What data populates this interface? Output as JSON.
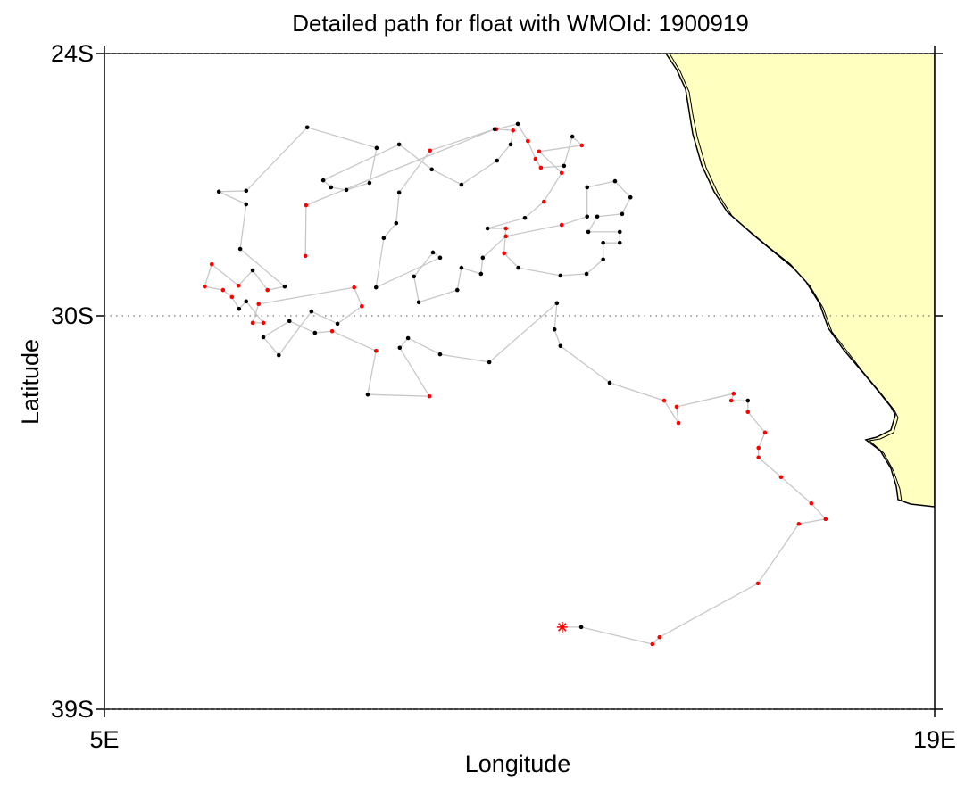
{
  "chart_data": {
    "type": "track",
    "title": "Detailed path for float with WMOId: 1900919",
    "x_label": "Longitude",
    "y_label": "Latitude",
    "xlim": [
      5,
      19
    ],
    "ylim": [
      -39,
      -24
    ],
    "xticks": [
      {
        "value": 5,
        "label": "5E"
      },
      {
        "value": 19,
        "label": "19E"
      }
    ],
    "yticks": [
      {
        "value": -39,
        "label": "39S"
      },
      {
        "value": -30,
        "label": "30S"
      },
      {
        "value": -24,
        "label": "24S"
      }
    ],
    "ygrid": true,
    "line_color": "#c8c8c8",
    "first_point_marker": "asterisk",
    "x": [
      12.72,
      13.04,
      14.24,
      14.36,
      16.02,
      16.71,
      17.16,
      16.92,
      16.41,
      16.03,
      16.03,
      16.14,
      15.85,
      15.85,
      15.57,
      15.61,
      14.65,
      14.68,
      14.44,
      13.52,
      12.69,
      12.59,
      12.63,
      11.49,
      10.66,
      10.12,
      9.98,
      10.48,
      9.44,
      9.58,
      8.84,
      8.55,
      8.12,
      7.68,
      7.94,
      8.49,
      8.93,
      9.34,
      9.21,
      7.6,
      7.5,
      7.68,
      7.39,
      7.27,
      7.15,
      7.0,
      6.69,
      6.81,
      7.26,
      7.5,
      7.75,
      8.04,
      7.29,
      7.39,
      6.93,
      7.39,
      8.42,
      9.59,
      9.47,
      9.08,
      8.82,
      8.69,
      9.97,
      10.52,
      11.02,
      11.62,
      11.85,
      11.89,
      11.61,
      11.97,
      12.14,
      12.27,
      12.36,
      12.75,
      12.89,
      13.05,
      12.33,
      12.71,
      12.41,
      12.09,
      11.46,
      11.77,
      11.74,
      11.98,
      12.69,
      13.13,
      13.41,
      13.41,
      13.69,
      13.69,
      13.16,
      13.31,
      13.73,
      13.87,
      13.61,
      13.14,
      13.14,
      12.71,
      11.77,
      11.38,
      11.35,
      11.02,
      10.95,
      10.3,
      10.22,
      10.54,
      10.66,
      9.58,
      9.71,
      9.92,
      9.97,
      10.49,
      11.58,
      8.4,
      8.39
    ],
    "values": [
      -37.12,
      -37.12,
      -37.51,
      -37.35,
      -36.12,
      -34.76,
      -34.65,
      -34.29,
      -33.69,
      -33.24,
      -33.02,
      -32.67,
      -32.2,
      -31.94,
      -31.94,
      -31.78,
      -32.08,
      -32.45,
      -31.94,
      -31.53,
      -30.69,
      -30.31,
      -29.71,
      -31.06,
      -30.88,
      -30.51,
      -30.73,
      -31.84,
      -31.8,
      -30.8,
      -30.35,
      -30.39,
      -30.12,
      -30.49,
      -30.9,
      -29.9,
      -30.18,
      -29.78,
      -29.35,
      -29.73,
      -30.16,
      -30.16,
      -29.67,
      -29.84,
      -29.57,
      -29.41,
      -29.33,
      -28.82,
      -29.31,
      -28.96,
      -29.41,
      -29.33,
      -28.47,
      -27.45,
      -27.16,
      -27.14,
      -25.69,
      -26.16,
      -26.96,
      -27.12,
      -27.06,
      -26.9,
      -26.08,
      -26.65,
      -27.0,
      -26.45,
      -26.08,
      -25.76,
      -25.73,
      -25.61,
      -26.0,
      -26.41,
      -26.61,
      -26.57,
      -25.9,
      -26.1,
      -26.24,
      -26.73,
      -27.39,
      -27.76,
      -28.0,
      -28.0,
      -28.57,
      -28.9,
      -29.08,
      -29.04,
      -28.71,
      -28.33,
      -28.33,
      -28.08,
      -28.08,
      -27.73,
      -27.67,
      -27.29,
      -26.92,
      -27.06,
      -27.73,
      -27.92,
      -28.18,
      -28.67,
      -29.04,
      -28.9,
      -29.41,
      -29.69,
      -29.1,
      -28.55,
      -28.67,
      -29.35,
      -28.22,
      -27.88,
      -27.18,
      -26.22,
      -25.73,
      -27.47,
      -28.63
    ],
    "point_colors": [
      "red",
      "black",
      "red",
      "red",
      "red",
      "red",
      "red",
      "red",
      "red",
      "red",
      "red",
      "red",
      "red",
      "black",
      "red",
      "red",
      "red",
      "red",
      "red",
      "black",
      "black",
      "black",
      "black",
      "black",
      "black",
      "black",
      "black",
      "red",
      "black",
      "red",
      "red",
      "black",
      "black",
      "black",
      "black",
      "black",
      "black",
      "red",
      "red",
      "red",
      "red",
      "red",
      "black",
      "black",
      "red",
      "red",
      "red",
      "red",
      "red",
      "black",
      "red",
      "black",
      "black",
      "black",
      "black",
      "black",
      "black",
      "black",
      "black",
      "black",
      "black",
      "black",
      "black",
      "black",
      "black",
      "black",
      "black",
      "red",
      "red",
      "black",
      "red",
      "red",
      "red",
      "black",
      "black",
      "red",
      "red",
      "red",
      "red",
      "black",
      "black",
      "red",
      "red",
      "black",
      "black",
      "black",
      "black",
      "black",
      "black",
      "black",
      "black",
      "black",
      "black",
      "black",
      "black",
      "black",
      "black",
      "red",
      "red",
      "black",
      "black",
      "black",
      "black",
      "black",
      "black",
      "black",
      "black",
      "black",
      "black",
      "black",
      "black",
      "red",
      "black",
      "red",
      "red"
    ]
  }
}
